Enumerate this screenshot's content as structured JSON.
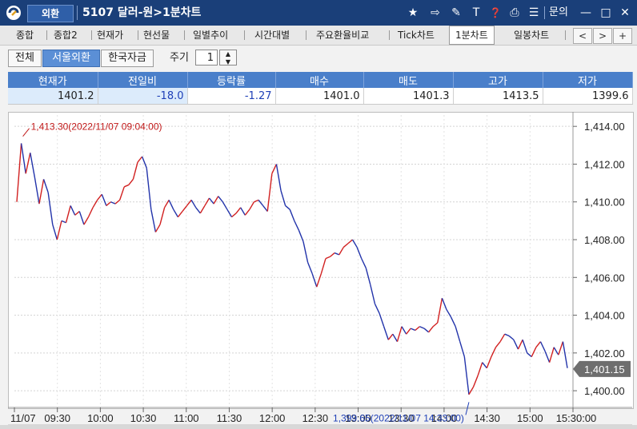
{
  "titlebar": {
    "window_name": "외환",
    "screen_title": "5107 달러-원>1분차트",
    "inquiry_label": "문의",
    "icons": [
      "star-icon",
      "export-icon",
      "tool-icon",
      "text-icon",
      "info-icon",
      "print-icon",
      "list-icon",
      "minimize-icon",
      "maximize-icon",
      "close-icon"
    ],
    "icon_glyphs": {
      "star": "★",
      "export": "⇨",
      "tool": "✎",
      "text": "T",
      "info": "❓",
      "print": "⎙",
      "list": "☰",
      "minimize": "—",
      "maximize": "□",
      "close": "✕"
    }
  },
  "tabs": [
    {
      "label": "종합"
    },
    {
      "label": "종합2"
    },
    {
      "label": "현재가"
    },
    {
      "label": "현선물"
    },
    {
      "label": "일별추이"
    },
    {
      "label": "시간대별"
    },
    {
      "label": "주요환율비교"
    },
    {
      "label": "Tick차트"
    },
    {
      "label": "1분차트",
      "active": true
    },
    {
      "label": "일봉차트"
    }
  ],
  "tab_nav": {
    "prev": "<",
    "next": ">",
    "add": "+"
  },
  "filter": {
    "buttons": [
      {
        "label": "전체"
      },
      {
        "label": "서울외환",
        "selected": true
      },
      {
        "label": "한국자금"
      }
    ],
    "period_label": "주기",
    "period_value": "1"
  },
  "quote_table": {
    "headers": [
      "현재가",
      "전일비",
      "등락률",
      "매수",
      "매도",
      "고가",
      "저가"
    ],
    "values": [
      "1401.2",
      "-18.0",
      "-1.27",
      "1401.0",
      "1401.3",
      "1413.5",
      "1399.6"
    ]
  },
  "colors": {
    "up": "#d12020",
    "down": "#2233aa",
    "header": "#4a7fca",
    "titlebar": "#1a3f79"
  },
  "chart_data": {
    "type": "line",
    "series": [
      {
        "values": [
          1410,
          1413.1,
          1411.5,
          1412.6,
          1411.3,
          1409.9,
          1411.2,
          1410.5,
          1408.8,
          1408.0,
          1409.0,
          1408.9,
          1409.8,
          1409.3,
          1409.5,
          1408.8,
          1409.2,
          1409.7,
          1410.1,
          1410.4,
          1409.8,
          1410.0,
          1409.9,
          1410.1,
          1410.8,
          1410.9,
          1411.2,
          1412.1,
          1412.4,
          1411.8,
          1409.6,
          1408.4,
          1408.8,
          1409.7,
          1410.1,
          1409.6,
          1409.2,
          1409.5,
          1409.8,
          1410.1,
          1409.7,
          1409.4,
          1409.8,
          1410.2,
          1409.9,
          1410.3,
          1410.0,
          1409.6,
          1409.2,
          1409.4,
          1409.7,
          1409.3,
          1409.6,
          1410.0,
          1410.1,
          1409.8,
          1409.5,
          1411.5,
          1412.0,
          1410.6,
          1409.8,
          1409.6,
          1409.0,
          1408.5,
          1407.9,
          1406.8,
          1406.2,
          1405.5,
          1406.2,
          1407.0,
          1407.1,
          1407.3,
          1407.2,
          1407.6,
          1407.8,
          1408.0,
          1407.6,
          1407.0,
          1406.5,
          1405.6,
          1404.6,
          1404.1,
          1403.4,
          1402.7,
          1403.0,
          1402.6,
          1403.4,
          1403.0,
          1403.3,
          1403.2,
          1403.4,
          1403.3,
          1403.1,
          1403.4,
          1403.6,
          1404.9,
          1404.3,
          1403.9,
          1403.4,
          1402.6,
          1401.8,
          1399.8,
          1400.2,
          1400.8,
          1401.5,
          1401.2,
          1401.8,
          1402.3,
          1402.6,
          1403.0,
          1402.9,
          1402.7,
          1402.2,
          1402.7,
          1402.0,
          1401.8,
          1402.3,
          1402.6,
          1402.1,
          1401.5,
          1402.3,
          1401.9,
          1402.6,
          1401.2
        ]
      }
    ],
    "x_ticks": [
      "11/07",
      "09:30",
      "10:00",
      "10:30",
      "11:00",
      "11:30",
      "12:00",
      "12:30",
      "13:00",
      "13:30",
      "14:00",
      "14:30",
      "15:00",
      "15:30:00"
    ],
    "y_ticks": [
      "1,414.00",
      "1,412.00",
      "1,410.00",
      "1,408.00",
      "1,406.00",
      "1,404.00",
      "1,402.00",
      "1,400.00"
    ],
    "ylim": [
      1399.2,
      1414.6
    ],
    "current_price_label": "1,401.15",
    "current_price": 1401.15,
    "high_annotation": "1,413.30(2022/11/07 09:04:00)",
    "low_annotation": "1,399.65(2022/11/07 14:33:00)",
    "high_value": 1413.3,
    "low_value": 1399.65,
    "grid": true
  }
}
